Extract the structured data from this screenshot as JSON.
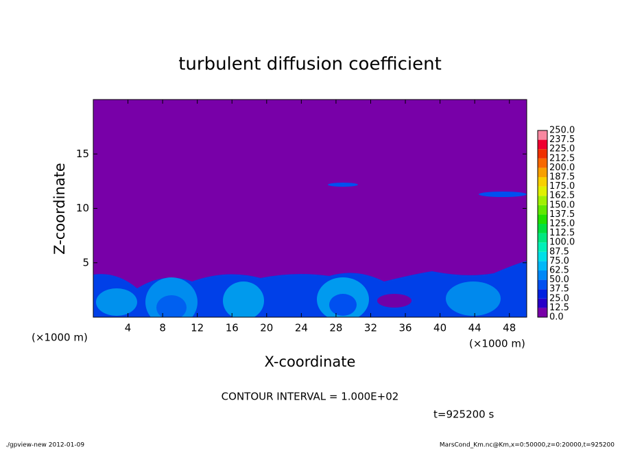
{
  "chart_data": {
    "type": "contour",
    "title": "turbulent diffusion coefficient",
    "x_label": "X-coordinate",
    "y_label": "Z-coordinate",
    "x_unit": "(×1000 m)",
    "y_unit": "(×1000 m)",
    "xlim": [
      0,
      50
    ],
    "xticks": [
      4,
      8,
      12,
      16,
      20,
      24,
      28,
      32,
      36,
      40,
      44,
      48
    ],
    "ylim": [
      0,
      20
    ],
    "yticks": [
      5,
      10,
      15
    ],
    "colorbar": {
      "levels": [
        {
          "value": 0,
          "label": "0.0"
        },
        {
          "value": 12.5,
          "label": "12.5"
        },
        {
          "value": 25,
          "label": "25.0"
        },
        {
          "value": 37.5,
          "label": "37.5"
        },
        {
          "value": 50,
          "label": "50.0"
        },
        {
          "value": 62.5,
          "label": "62.5"
        },
        {
          "value": 75,
          "label": "75.0"
        },
        {
          "value": 87.5,
          "label": "87.5"
        },
        {
          "value": 100,
          "label": "100.0"
        },
        {
          "value": 112.5,
          "label": "112.5"
        },
        {
          "value": 125,
          "label": "125.0"
        },
        {
          "value": 137.5,
          "label": "137.5"
        },
        {
          "value": 150,
          "label": "150.0"
        },
        {
          "value": 162.5,
          "label": "162.5"
        },
        {
          "value": 175,
          "label": "175.0"
        },
        {
          "value": 187.5,
          "label": "187.5"
        },
        {
          "value": 200,
          "label": "200.0"
        },
        {
          "value": 212.5,
          "label": "212.5"
        },
        {
          "value": 225,
          "label": "225.0"
        },
        {
          "value": 237.5,
          "label": "237.5"
        },
        {
          "value": 250,
          "label": "250.0"
        }
      ],
      "colors": [
        "#7800a8",
        "#2800c8",
        "#0020e0",
        "#0050f0",
        "#0088f8",
        "#00b8f8",
        "#00e0e8",
        "#00f0b8",
        "#00e880",
        "#00e040",
        "#20e000",
        "#60e800",
        "#a0f000",
        "#e0f000",
        "#f8d000",
        "#f8a000",
        "#f86800",
        "#f03000",
        "#f00030",
        "#f888a0"
      ]
    },
    "contour_note": "CONTOUR INTERVAL = 1.000E+02",
    "time_label": "t=925200 s",
    "footer_left": "./gpview-new  2012-01-09",
    "footer_right": "MarsCond_Km.nc@Km,x=0:50000,z=0:20000,t=925200"
  }
}
